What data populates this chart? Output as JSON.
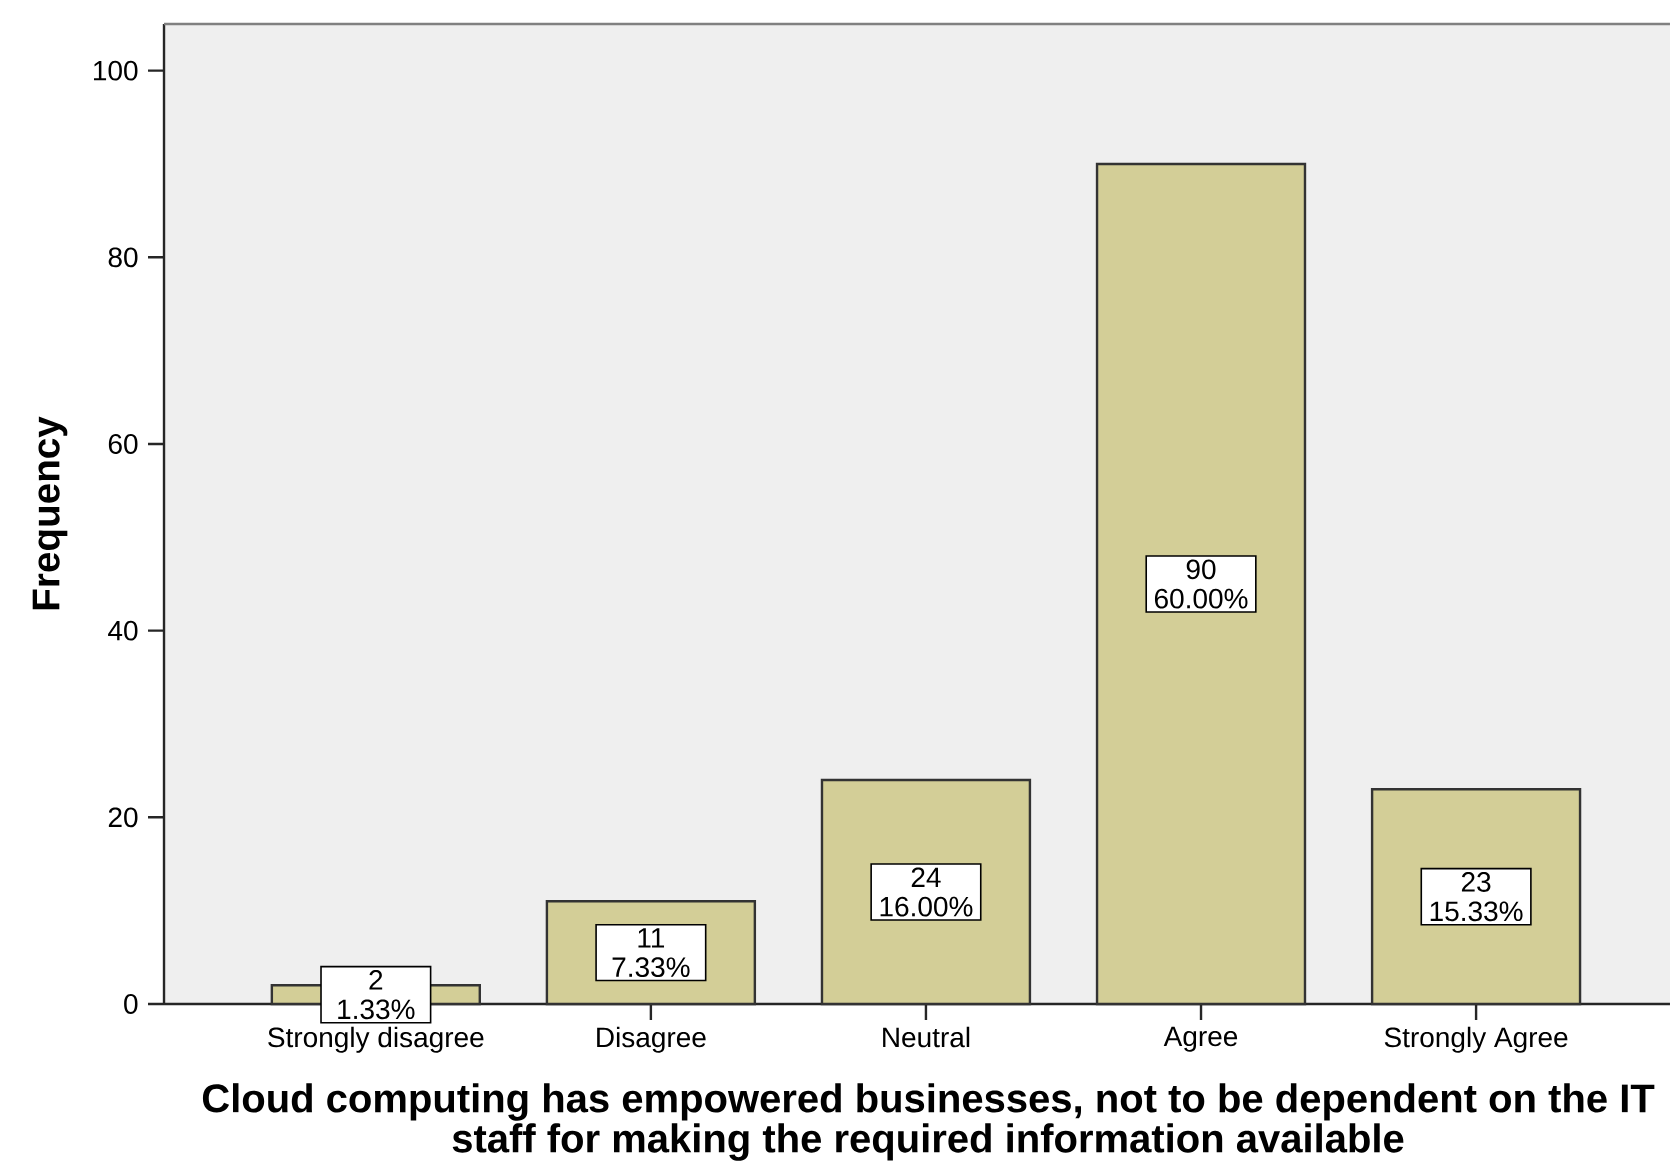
{
  "chart_data": {
    "type": "bar",
    "xlabel": "Cloud computing has empowered businesses, not to be dependent on the IT staff for making the required information available",
    "ylabel": "Frequency",
    "categories": [
      "Strongly disagree",
      "Disagree",
      "Neutral",
      "Agree",
      "Strongly Agree"
    ],
    "values": [
      2,
      11,
      24,
      90,
      23
    ],
    "color": "#d3ce97",
    "value_labels": [
      "2 1.33%",
      "11 7.33%",
      "24 16.00%",
      "90 60.00%",
      "23 15.33%"
    ],
    "ylim": [
      0,
      105
    ],
    "yticks": [
      0,
      20,
      40,
      60,
      80,
      100
    ]
  }
}
